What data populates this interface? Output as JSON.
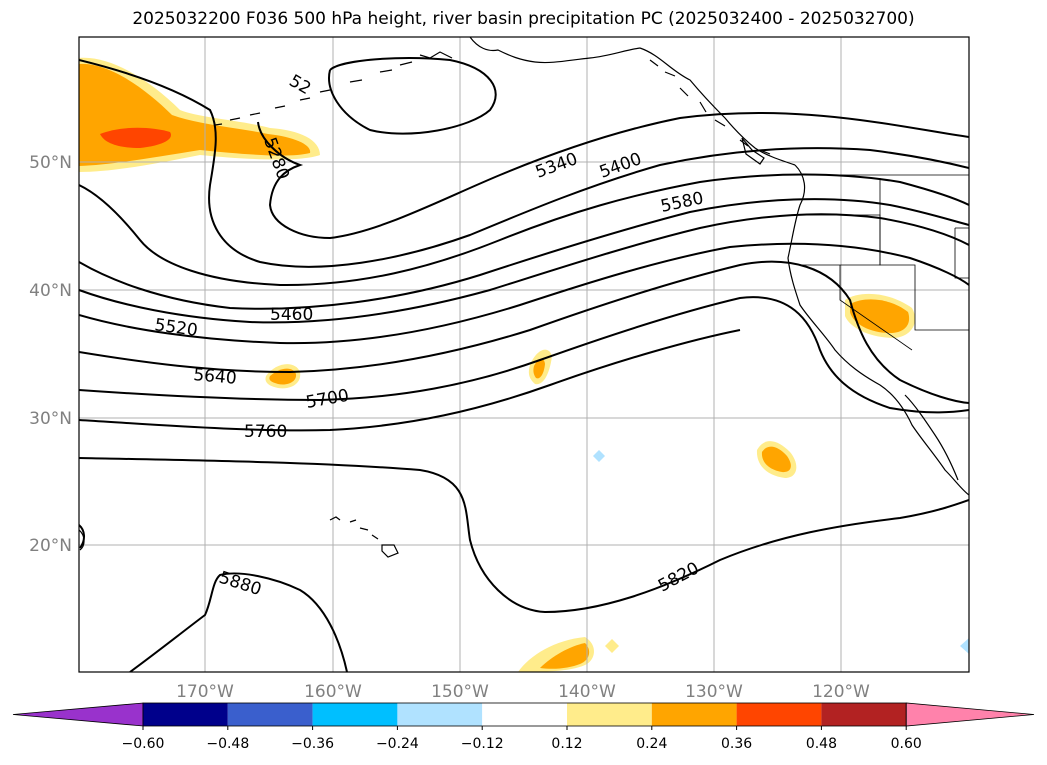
{
  "title": "2025032200 F036 500 hPa height, river basin precipitation PC (2025032400 - 2025032700)",
  "map": {
    "lat_labels": [
      "50°N",
      "40°N",
      "30°N",
      "20°N"
    ],
    "lon_labels": [
      "170°W",
      "160°W",
      "150°W",
      "140°W",
      "130°W",
      "120°W"
    ],
    "contour_labels": [
      "5280",
      "5340",
      "5400",
      "5580",
      "5460",
      "5520",
      "5640",
      "5700",
      "5760",
      "5820",
      "5880",
      "52"
    ]
  },
  "colorbar": {
    "tick_labels": [
      "−0.60",
      "−0.48",
      "−0.36",
      "−0.24",
      "−0.12",
      "0.12",
      "0.24",
      "0.36",
      "0.48",
      "0.60"
    ],
    "colors": [
      "#9932cc",
      "#00008b",
      "#3a5fcd",
      "#00bfff",
      "#b0e2ff",
      "#ffffff",
      "#ffec8b",
      "#ffa500",
      "#ff4500",
      "#b22222",
      "#ff82ab"
    ]
  }
}
